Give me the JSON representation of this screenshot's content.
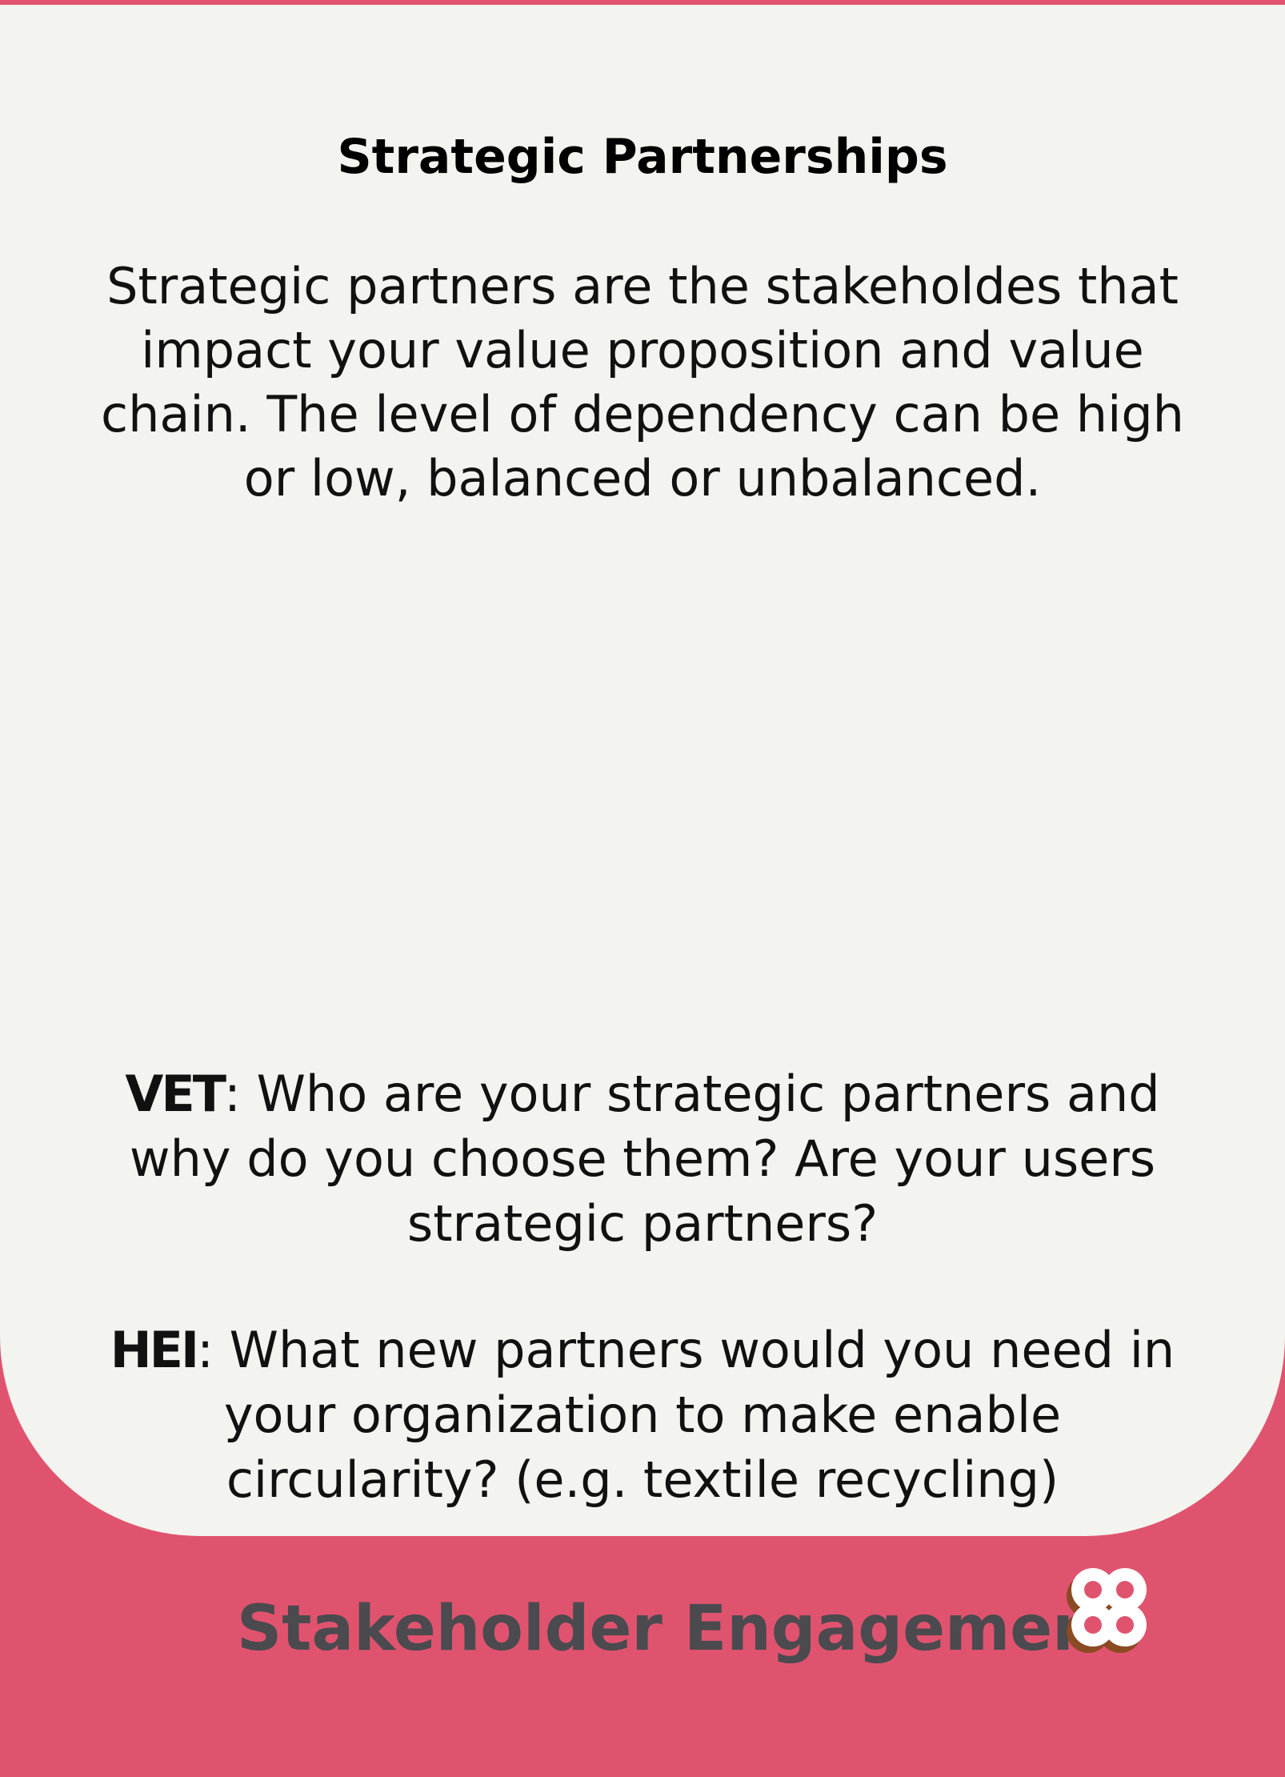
{
  "card": {
    "title": "Strategic Partnerships",
    "intro": "Strategic partners are the stakeholdes that impact your value proposition and value chain. The level of dependency can be high or low, balanced or unbalanced.",
    "questions": [
      {
        "tag": "VET",
        "text": ": Who are your strategic partners and why do you choose them? Are your users strategic partners?"
      },
      {
        "tag": "HEI",
        "text": ": What new partners would you need in your organization to make enable circularity? (e.g. textile recycling)"
      }
    ]
  },
  "footer": {
    "label": "Stakeholder Engagement",
    "logo_icon": "quatrefoil-logo-icon"
  },
  "colors": {
    "background_pink": "#e0536e",
    "card_cream": "#f3f3ef",
    "footer_text": "#4a4a4f",
    "logo_fill": "#ffffff",
    "logo_shadow": "#8a4a22"
  }
}
